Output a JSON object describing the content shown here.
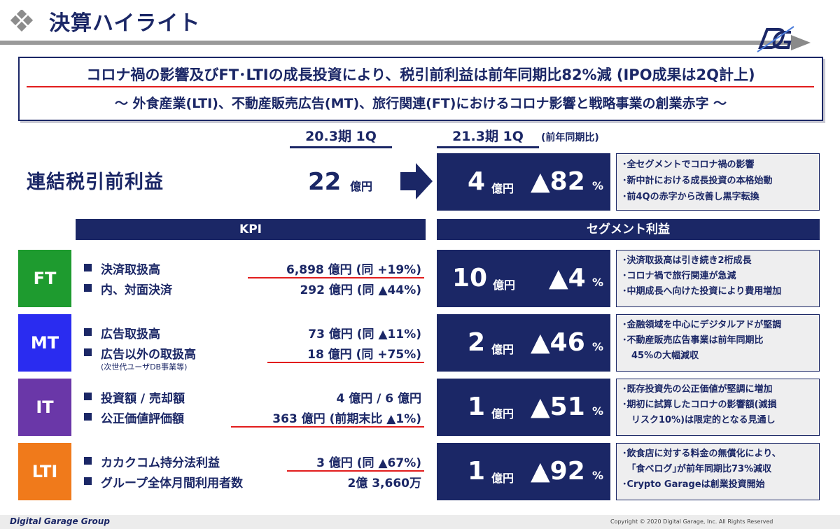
{
  "header": {
    "title": "決算ハイライト",
    "logo_text": "DG"
  },
  "headline": {
    "line1": "コロナ禍の影響及びFT･LTIの成長投資により、税引前利益は前年同期比82%減 (IPO成果は2Q計上)",
    "line2": "〜 外食産業(LTI)、不動産販売広告(MT)、旅行関連(FT)におけるコロナ影響と戦略事業の創業赤字 〜"
  },
  "periods": {
    "prev": "20.3期 1Q",
    "curr": "21.3期 1Q",
    "note": "(前年同期比)"
  },
  "consolidated": {
    "label": "連結税引前利益",
    "prev_value": "22",
    "prev_unit": "億円",
    "curr_value": "4",
    "curr_unit": "億円",
    "change": "▲82",
    "change_unit": "%",
    "notes": [
      "･全セグメントでコロナ禍の影響",
      "･新中計における成長投資の本格始動",
      "･前4Qの赤字から改善し黒字転換"
    ]
  },
  "sections": {
    "kpi": "KPI",
    "segment": "セグメント利益"
  },
  "segments": [
    {
      "tag": "FT",
      "color": "#1e9b2f",
      "kpis": [
        {
          "label": "決済取扱高",
          "value": "6,898 億円 (同 +19%)",
          "underline": true
        },
        {
          "label": "内、対面決済",
          "value": "292 億円 (同 ▲44%)",
          "underline": false
        }
      ],
      "sub": "",
      "profit": "10",
      "unit": "億円",
      "change": "▲4",
      "pct": "%",
      "notes": [
        "･決済取扱高は引き続き2桁成長",
        "･コロナ禍で旅行関連が急減",
        "･中期成長へ向けた投資により費用増加"
      ]
    },
    {
      "tag": "MT",
      "color": "#2a2cf0",
      "kpis": [
        {
          "label": "広告取扱高",
          "value": "73 億円 (同 ▲11%)",
          "underline": false
        },
        {
          "label": "広告以外の取扱高",
          "value": "18 億円 (同 +75%)",
          "underline": true
        }
      ],
      "sub": "(次世代ユーザDB事業等)",
      "profit": "2",
      "unit": "億円",
      "change": "▲46",
      "pct": "%",
      "notes": [
        "･金融領域を中心にデジタルアドが堅調",
        "･不動産販売広告事業は前年同期比",
        "　45%の大幅減収"
      ]
    },
    {
      "tag": "IT",
      "color": "#6a37a8",
      "kpis": [
        {
          "label": "投資額 / 売却額",
          "value": "4 億円 / 6 億円",
          "underline": false
        },
        {
          "label": "公正価値評価額",
          "value": "363 億円 (前期末比 ▲1%)",
          "underline": true
        }
      ],
      "sub": "",
      "profit": "1",
      "unit": "億円",
      "change": "▲51",
      "pct": "%",
      "notes": [
        "･既存投資先の公正価値が堅調に増加",
        "･期初に試算したコロナの影響額(減損",
        "　リスク10%)は限定的となる見通し"
      ]
    },
    {
      "tag": "LTI",
      "color": "#f07a1b",
      "kpis": [
        {
          "label": "カカクコム持分法利益",
          "value": "3 億円 (同 ▲67%)",
          "underline": true
        },
        {
          "label": "グループ全体月間利用者数",
          "value": "2億 3,660万",
          "underline": false
        }
      ],
      "sub": "",
      "profit": "1",
      "unit": "億円",
      "change": "▲92",
      "pct": "%",
      "notes": [
        "･飲食店に対する料金の無償化により、",
        "　｢食べログ｣が前年同期比73%減収",
        "･Crypto Garageは創業投資開始"
      ]
    }
  ],
  "footer": {
    "logo": "Digital Garage Group",
    "copyright": "Copyright © 2020 Digital Garage, Inc. All Rights Reserved"
  }
}
